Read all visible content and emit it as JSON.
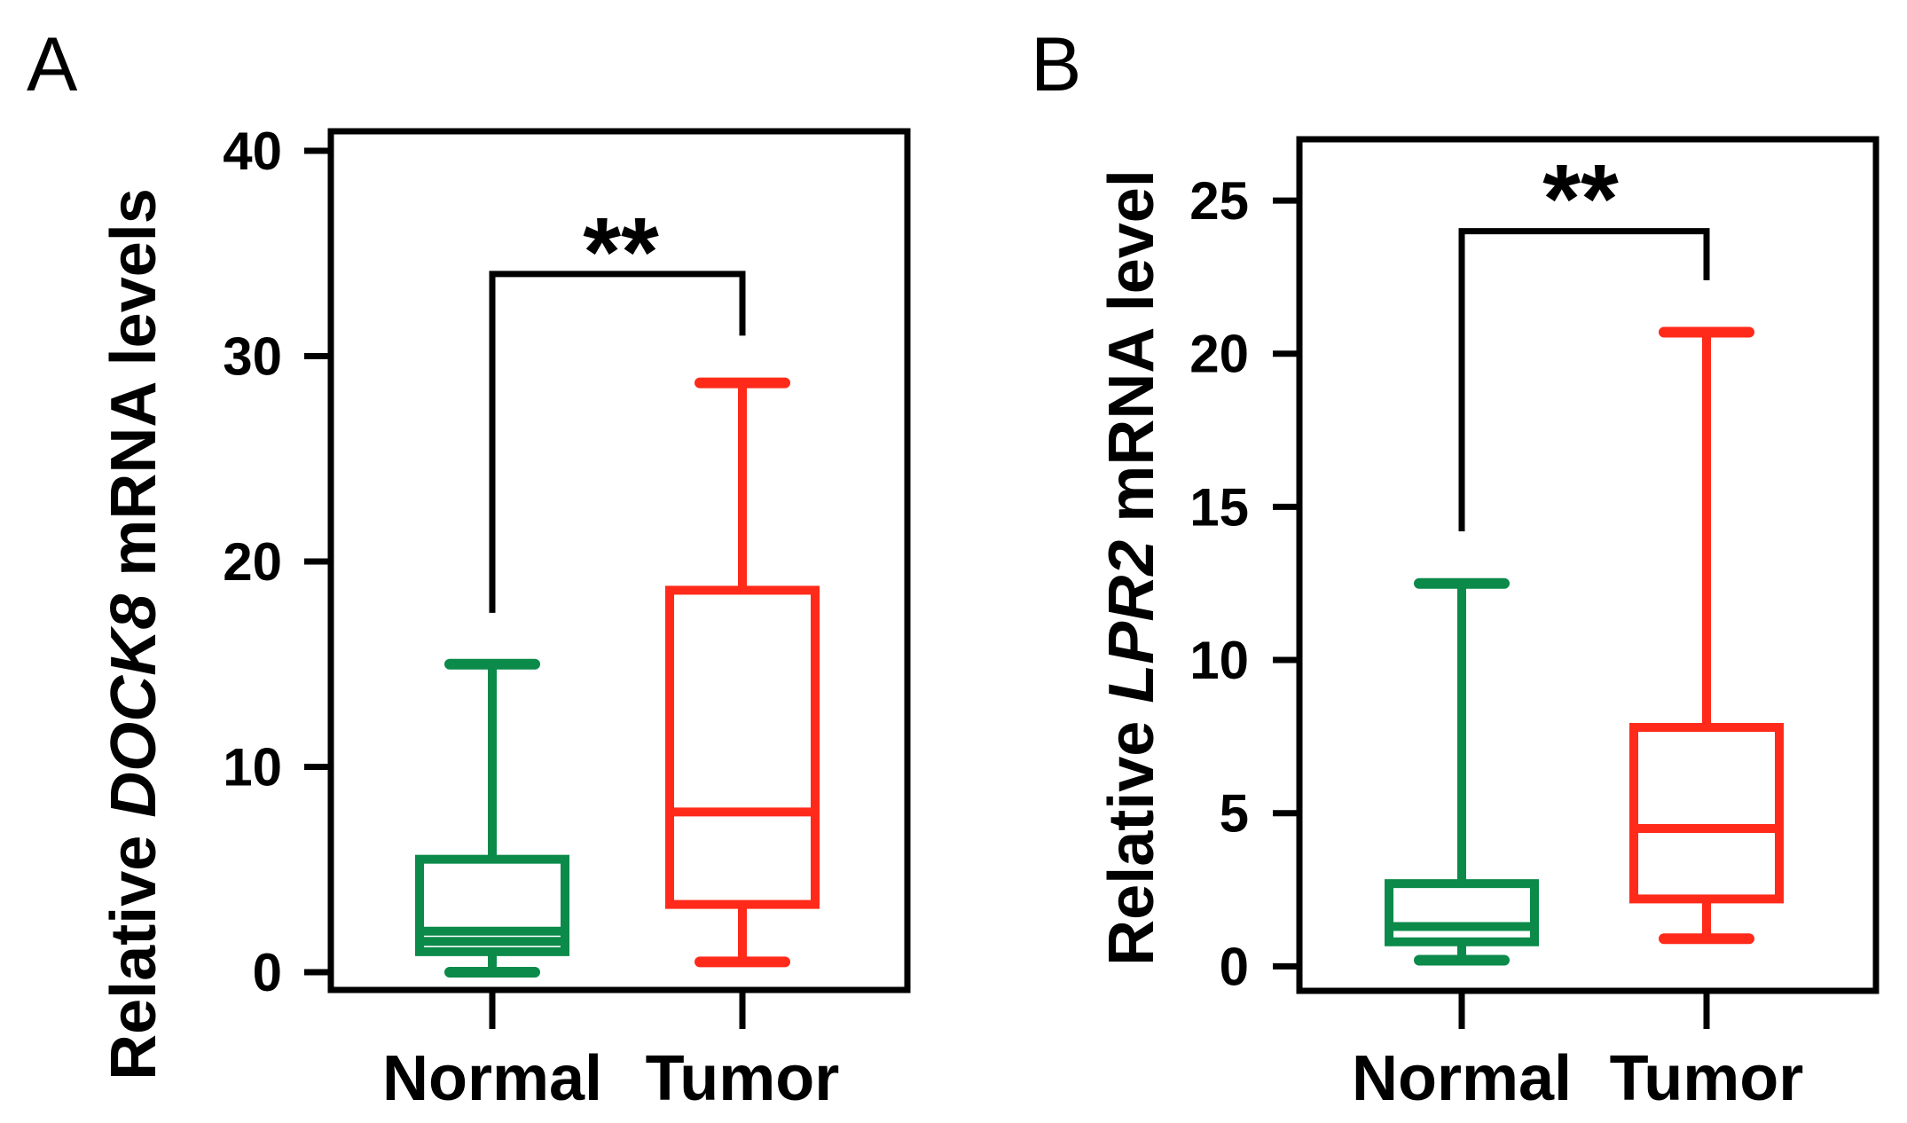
{
  "chart_data": [
    {
      "panel": "A",
      "type": "box",
      "ylabel_prefix": "Relative ",
      "ylabel_gene": "DOCK8",
      "ylabel_suffix": " mRNA levels",
      "ylim": [
        0,
        40
      ],
      "yticks": [
        0,
        10,
        20,
        30,
        40
      ],
      "ytick_labels": [
        "0",
        "10",
        "20",
        "30",
        "40"
      ],
      "categories": [
        "Normal",
        "Tumor"
      ],
      "series": [
        {
          "name": "Normal",
          "color": "#0b8a4a",
          "min": 0,
          "q1": 1,
          "median": 1.5,
          "mean": 2,
          "q3": 5.5,
          "max": 15
        },
        {
          "name": "Tumor",
          "color": "#ff2a1a",
          "min": 0.5,
          "q1": 3.3,
          "median": 7.8,
          "q3": 18.6,
          "max": 28.7
        }
      ],
      "significance": {
        "label": "**",
        "left_end": 17.5,
        "right_end": 31,
        "bracket_y": 34
      }
    },
    {
      "panel": "B",
      "type": "box",
      "ylabel_prefix": "Relative ",
      "ylabel_gene": "LPR2",
      "ylabel_suffix": " mRNA level",
      "ylim": [
        -0.8,
        27
      ],
      "yticks": [
        0,
        5,
        10,
        15,
        20,
        25
      ],
      "ytick_labels": [
        "0",
        "5",
        "10",
        "15",
        "20",
        "25"
      ],
      "categories": [
        "Normal",
        "Tumor"
      ],
      "series": [
        {
          "name": "Normal",
          "color": "#0b8a4a",
          "min": 0.2,
          "q1": 0.8,
          "median": 1.3,
          "q3": 2.7,
          "max": 12.5
        },
        {
          "name": "Tumor",
          "color": "#ff2a1a",
          "min": 0.9,
          "q1": 2.2,
          "median": 4.5,
          "q3": 7.8,
          "max": 20.7
        }
      ],
      "significance": {
        "label": "**",
        "left_end": 14.2,
        "right_end": 22.4,
        "bracket_y": 24
      }
    }
  ]
}
